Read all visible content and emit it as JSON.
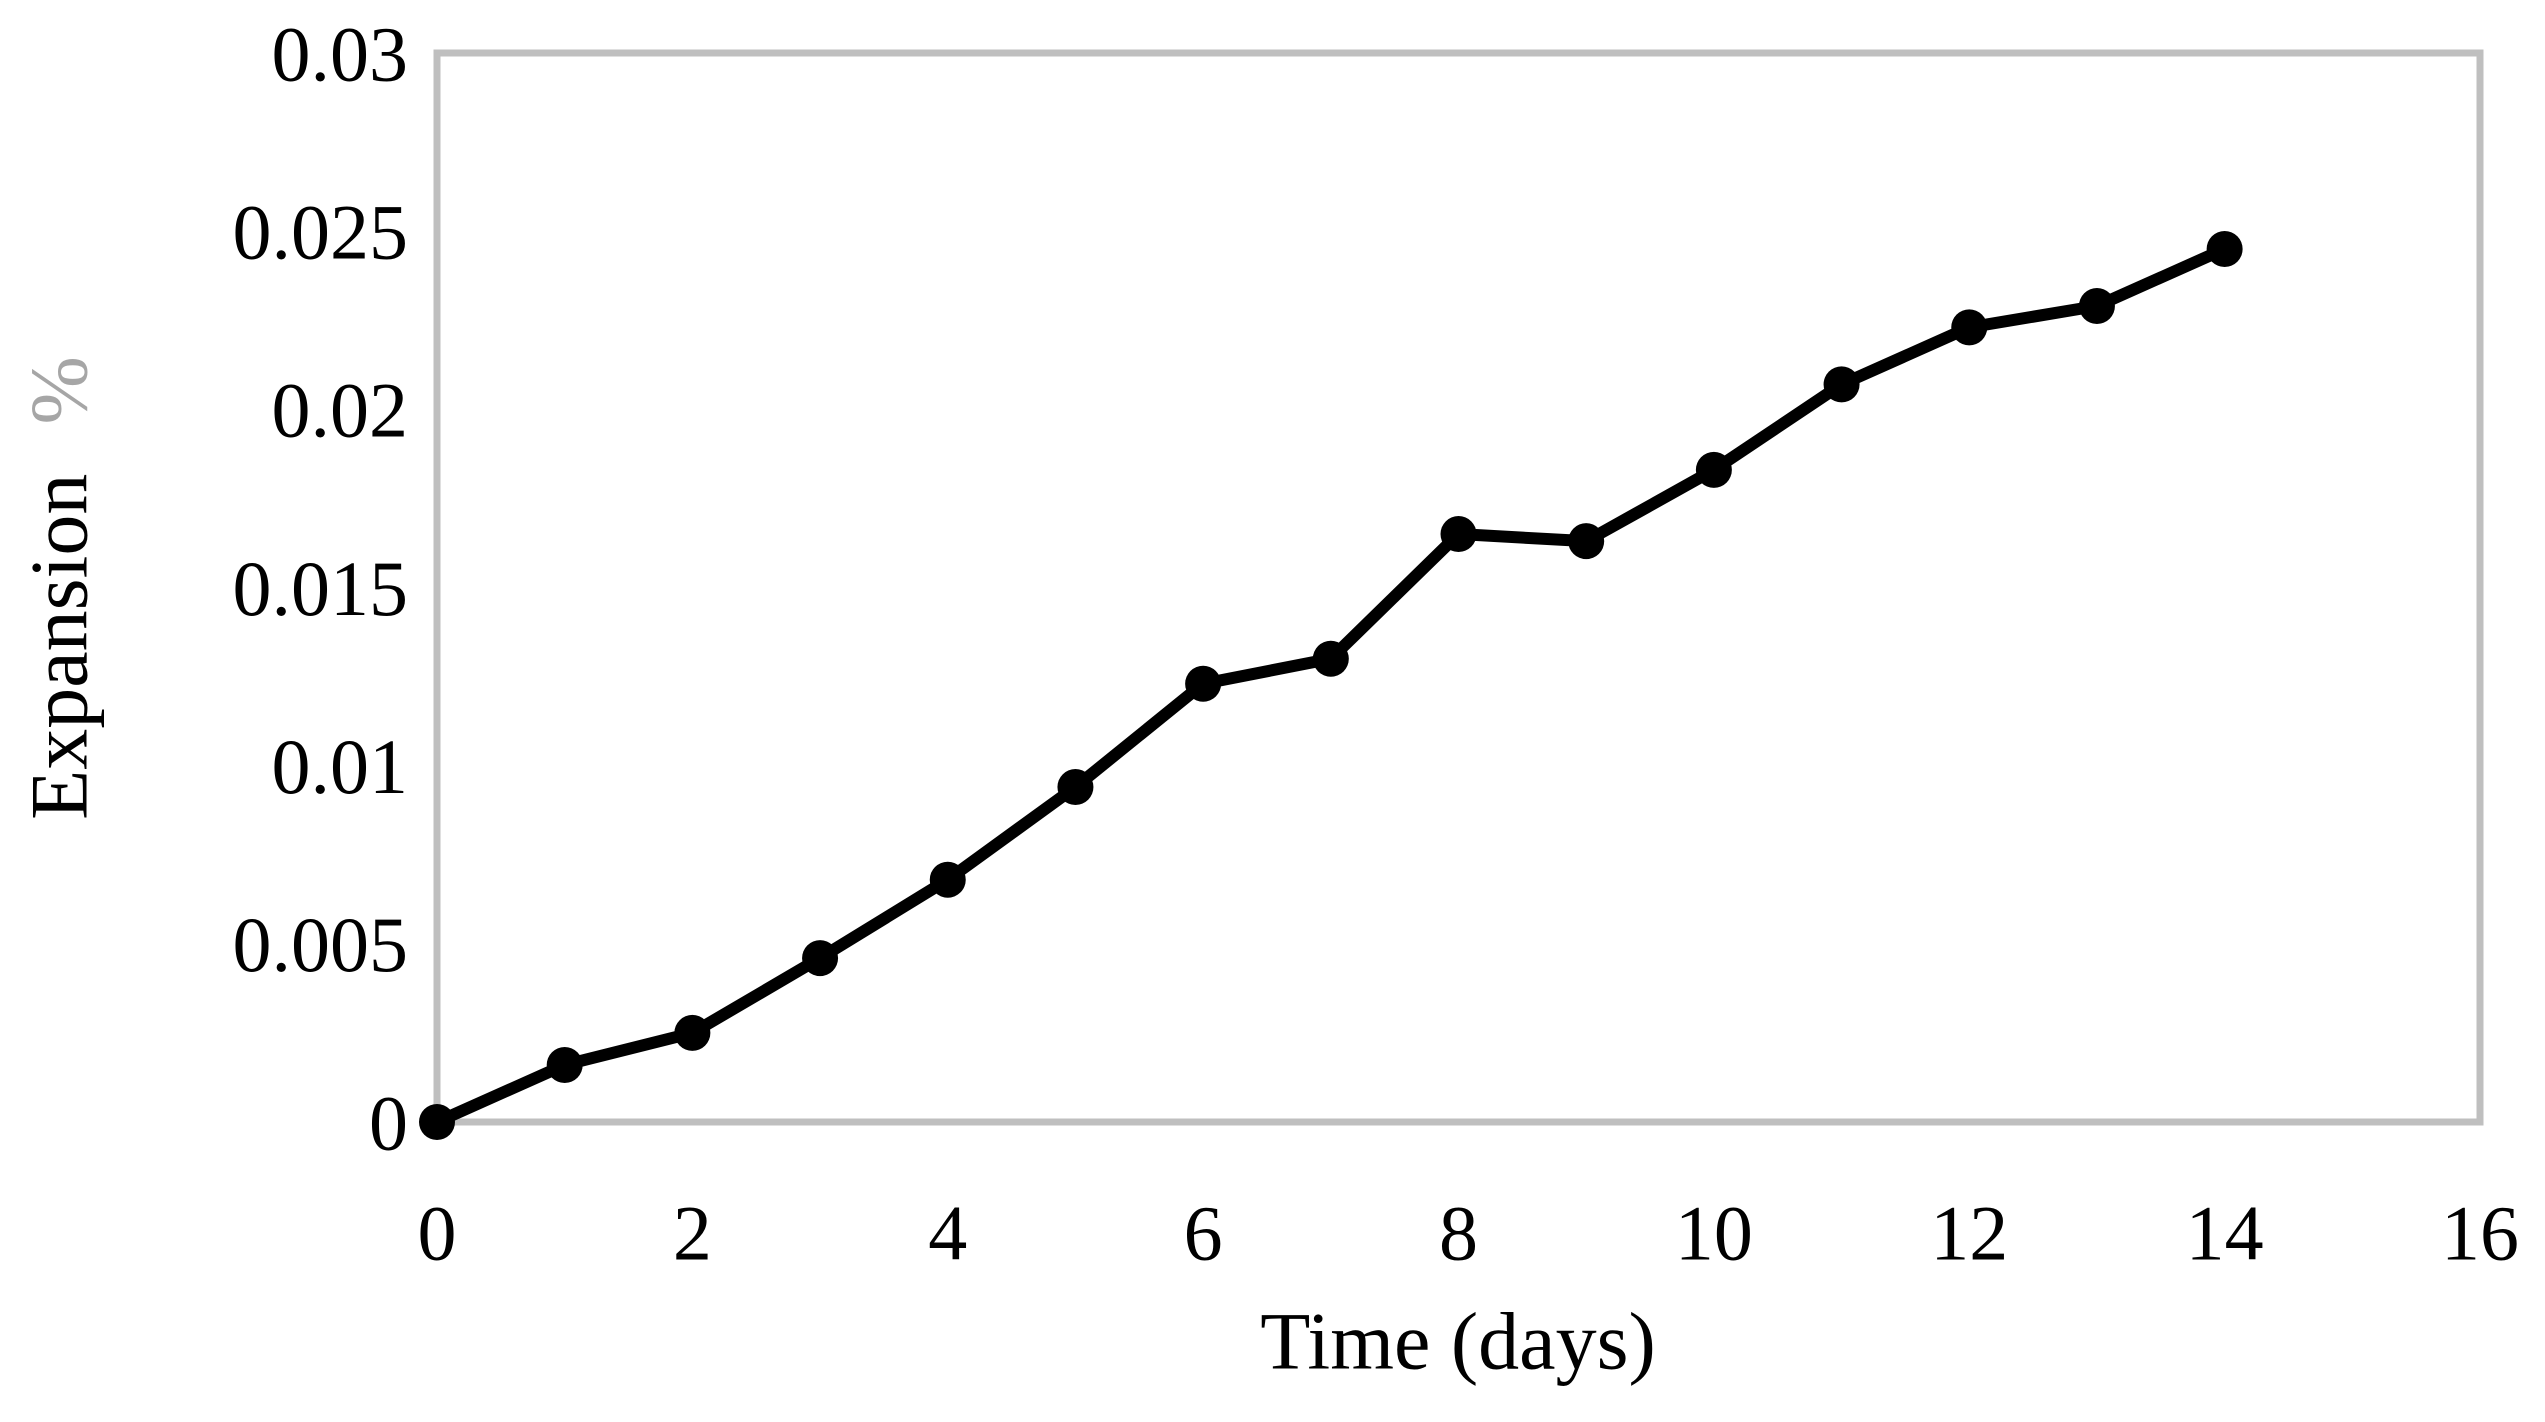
{
  "figure": {
    "background": "#ffffff"
  },
  "chart_data": {
    "type": "line",
    "title": "",
    "xlabel": "Time (days)",
    "ylabel": "Expansion %",
    "ylabel_parts": {
      "main": "Expansion",
      "suffix": "%"
    },
    "series": [
      {
        "name": "Expansion %",
        "x": [
          0,
          1,
          2,
          3,
          4,
          5,
          6,
          7,
          8,
          9,
          10,
          11,
          12,
          13,
          14
        ],
        "y": [
          0,
          0.0016,
          0.0025,
          0.0046,
          0.0068,
          0.0094,
          0.0123,
          0.013,
          0.0165,
          0.0163,
          0.0183,
          0.0207,
          0.0223,
          0.0229,
          0.0245
        ]
      }
    ],
    "xlim": [
      0,
      16
    ],
    "ylim": [
      0,
      0.03
    ],
    "x_ticks": {
      "values": [
        0,
        2,
        4,
        6,
        8,
        10,
        12,
        14,
        16
      ],
      "labels": [
        "0",
        "2",
        "4",
        "6",
        "8",
        "10",
        "12",
        "14",
        "16"
      ]
    },
    "y_ticks": {
      "values": [
        0,
        0.005,
        0.01,
        0.015,
        0.02,
        0.025,
        0.03
      ],
      "labels": [
        "0",
        "0.005",
        "0.01",
        "0.015",
        "0.02",
        "0.025",
        "0.03"
      ]
    },
    "grid": "off",
    "legend": "none",
    "marker": "circle",
    "line_width": 12,
    "marker_radius": 18,
    "colors": {
      "series": "#000000",
      "plot_border": "#bfbfbf",
      "tick_text": "#000000",
      "axis_title_text": "#000000",
      "ylabel_suffix": "#a6a6a6"
    }
  }
}
